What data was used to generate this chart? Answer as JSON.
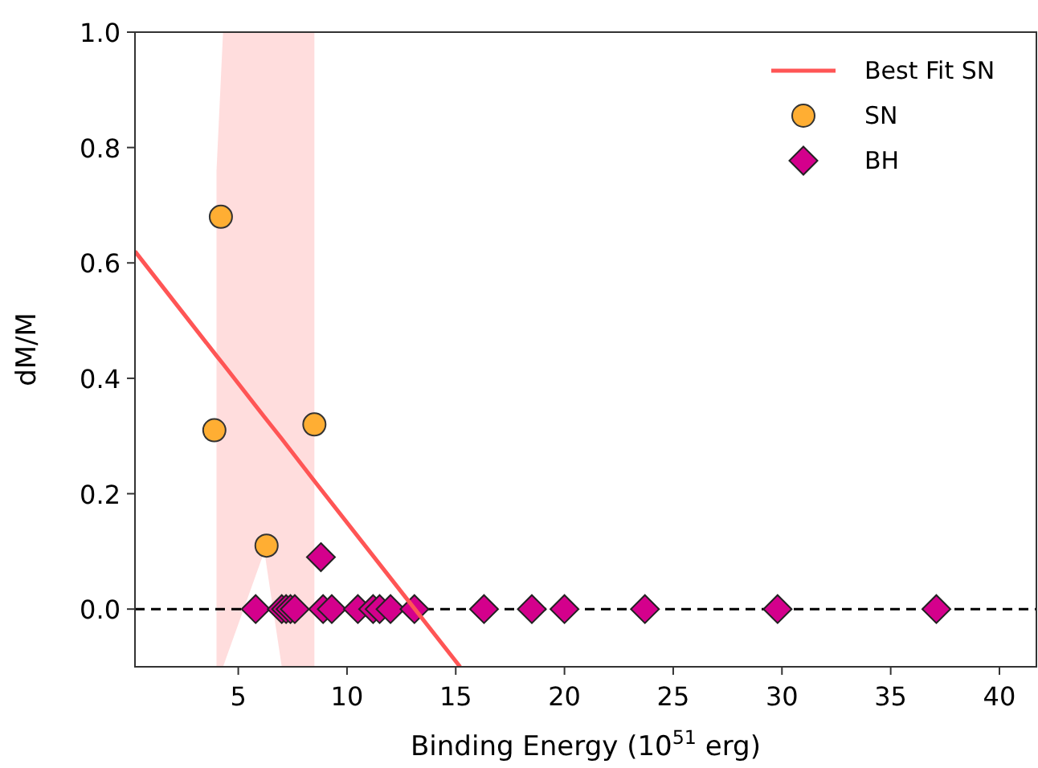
{
  "chart_data": {
    "type": "scatter",
    "xlabel": "Binding Energy (10$^{51}$ erg)",
    "ylabel": "dM/M",
    "xlim": [
      0.25,
      41.7
    ],
    "ylim": [
      -0.1,
      1.0
    ],
    "xticks": [
      5,
      10,
      15,
      20,
      25,
      30,
      35,
      40
    ],
    "yticks": [
      {
        "value": 0,
        "label": "0.0"
      },
      0.2,
      0.4,
      0.6,
      0.8,
      {
        "value": 1,
        "label": "1.0"
      }
    ],
    "grid": false,
    "legend": "top right",
    "ref_lines": [
      {
        "axis": "y",
        "value": 0,
        "color": "#000000",
        "line_style": "dashed"
      }
    ],
    "series": [
      {
        "name": "Best Fit SN",
        "type": "line",
        "color": "#ff5555",
        "line_style": "solid",
        "marker": "none",
        "x": [
          0.25,
          4.0,
          4.3,
          6.2,
          7.0,
          8.5,
          15.2
        ],
        "values": [
          0.62,
          0.439,
          0.425,
          0.333,
          0.295,
          0.222,
          -0.1
        ],
        "lower": [
          null,
          -0.1,
          -0.1,
          0.1,
          -0.1,
          -0.1,
          null
        ],
        "upper": [
          null,
          0.76,
          1.0,
          1.0,
          1.0,
          1.0,
          null
        ]
      },
      {
        "name": "SN",
        "color": "#ffae33",
        "marker": "circle",
        "x": [
          4.2,
          3.9,
          8.5,
          6.3
        ],
        "values": [
          0.68,
          0.31,
          0.32,
          0.11
        ]
      },
      {
        "name": "BH",
        "color": "#d4008c",
        "marker": "diamond",
        "x": [
          8.8,
          5.8,
          7.0,
          7.2,
          7.4,
          7.6,
          8.9,
          9.3,
          10.5,
          11.2,
          11.5,
          12.0,
          13.1,
          16.3,
          18.5,
          20.0,
          23.7,
          29.8,
          37.1
        ],
        "values": [
          0.09,
          0,
          0,
          0,
          0,
          0,
          0,
          0,
          0,
          0,
          0,
          0,
          0,
          0,
          0,
          0,
          0,
          0,
          0
        ]
      }
    ]
  }
}
